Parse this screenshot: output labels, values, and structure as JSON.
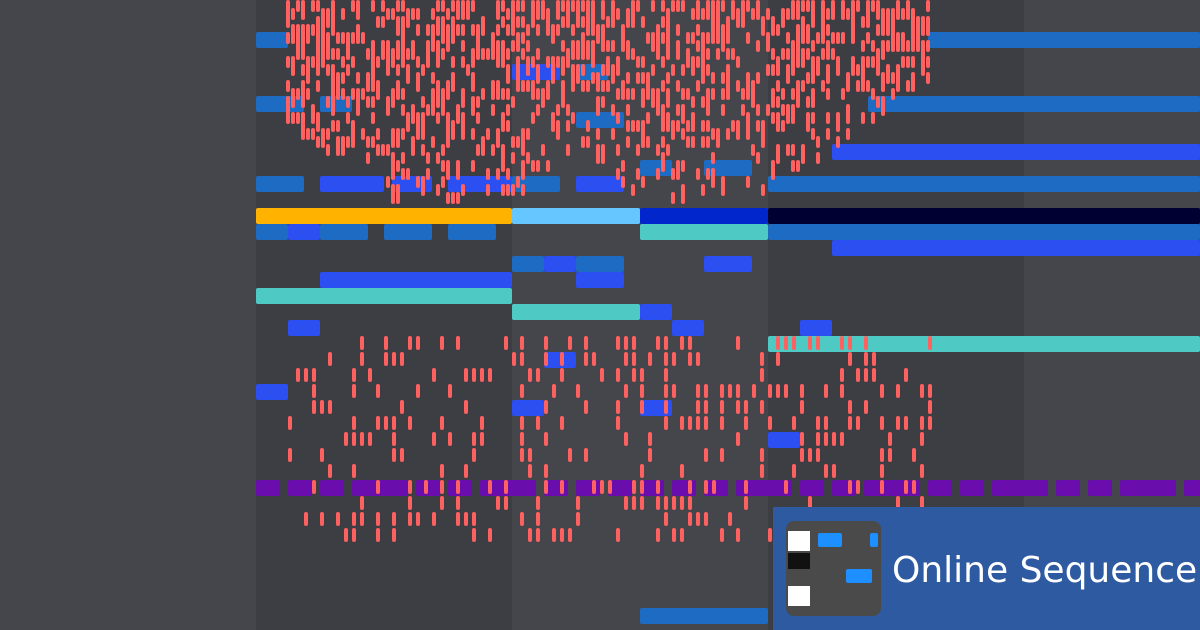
{
  "banner": {
    "title": "Online Sequencer"
  }
}
